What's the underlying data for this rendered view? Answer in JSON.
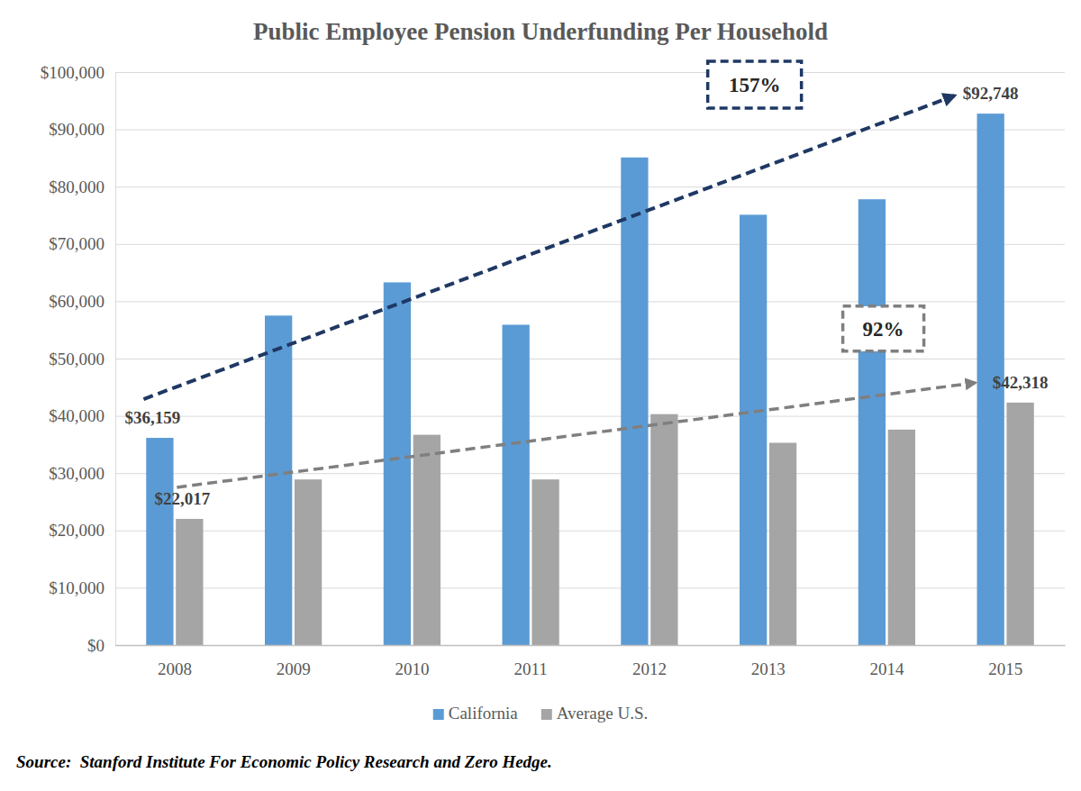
{
  "chart_data": {
    "type": "bar",
    "title": "Public Employee Pension Underfunding Per Household",
    "categories": [
      "2008",
      "2009",
      "2010",
      "2011",
      "2012",
      "2013",
      "2014",
      "2015"
    ],
    "series": [
      {
        "name": "California",
        "color": "#5b9bd5",
        "values": [
          36159,
          57500,
          63300,
          55900,
          85100,
          75100,
          77800,
          92748
        ],
        "value_labels": [
          "$36,159",
          null,
          null,
          null,
          null,
          null,
          null,
          "$92,748"
        ]
      },
      {
        "name": "Average U.S.",
        "color": "#a5a5a5",
        "values": [
          22017,
          28900,
          36700,
          28900,
          40300,
          35300,
          37600,
          42318
        ],
        "value_labels": [
          "$22,017",
          null,
          null,
          null,
          null,
          null,
          null,
          "$42,318"
        ]
      }
    ],
    "ylim": [
      0,
      100000
    ],
    "yticks": [
      {
        "value": 0,
        "label": "$0"
      },
      {
        "value": 10000,
        "label": "$10,000"
      },
      {
        "value": 20000,
        "label": "$20,000"
      },
      {
        "value": 30000,
        "label": "$30,000"
      },
      {
        "value": 40000,
        "label": "$40,000"
      },
      {
        "value": 50000,
        "label": "$50,000"
      },
      {
        "value": 60000,
        "label": "$60,000"
      },
      {
        "value": 70000,
        "label": "$70,000"
      },
      {
        "value": 80000,
        "label": "$80,000"
      },
      {
        "value": 90000,
        "label": "$90,000"
      },
      {
        "value": 100000,
        "label": "$100,000"
      }
    ],
    "grid": true,
    "legend": "bottom",
    "data_labels": true,
    "annotations": [
      "157%",
      "92%"
    ],
    "source": "Source:  Stanford Institute For Economic Policy Research and Zero Hedge."
  }
}
